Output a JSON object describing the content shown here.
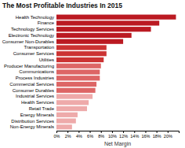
{
  "chart_data": {
    "type": "bar",
    "orientation": "horizontal",
    "title": "The Most Profitable Industries In 2015",
    "xlabel": "Net Margin",
    "categories": [
      "Health Technology",
      "Finance",
      "Technology Services",
      "Electronic Technology",
      "Consumer Non-Durables",
      "Transportation",
      "Consumer Services",
      "Utilities",
      "Producer Manufacturing",
      "Communications",
      "Process Industries",
      "Commercial Services",
      "Consumer Durables",
      "Industrial Services",
      "Health Services",
      "Retail Trade",
      "Energy Minerals",
      "Distribution Services",
      "Non-Energy Minerals"
    ],
    "values": [
      21.5,
      18.5,
      17.0,
      13.5,
      12.0,
      9.0,
      9.0,
      8.5,
      8.0,
      7.8,
      7.8,
      7.2,
      7.0,
      6.5,
      5.8,
      5.5,
      3.8,
      3.5,
      2.8
    ],
    "colors": [
      "#bb1a22",
      "#bb1a22",
      "#bb1a22",
      "#bb1a22",
      "#bb1a22",
      "#cc3333",
      "#cc3333",
      "#cc3333",
      "#dd6666",
      "#dd6666",
      "#dd6666",
      "#dd6666",
      "#dd6666",
      "#eeaaaa",
      "#eeaaaa",
      "#eeaaaa",
      "#eeaaaa",
      "#eeaaaa",
      "#eeaaaa"
    ],
    "xlim": [
      0,
      22
    ],
    "xticks": [
      {
        "value": 0,
        "label": "0%"
      },
      {
        "value": 2,
        "label": "2%"
      },
      {
        "value": 4,
        "label": "4%"
      },
      {
        "value": 6,
        "label": "6%"
      },
      {
        "value": 8,
        "label": "8%"
      },
      {
        "value": 10,
        "label": "10%"
      },
      {
        "value": 12,
        "label": "12%"
      },
      {
        "value": 14,
        "label": "14%"
      },
      {
        "value": 16,
        "label": "16%"
      },
      {
        "value": 18,
        "label": "18%"
      },
      {
        "value": 20,
        "label": "20%"
      }
    ]
  }
}
